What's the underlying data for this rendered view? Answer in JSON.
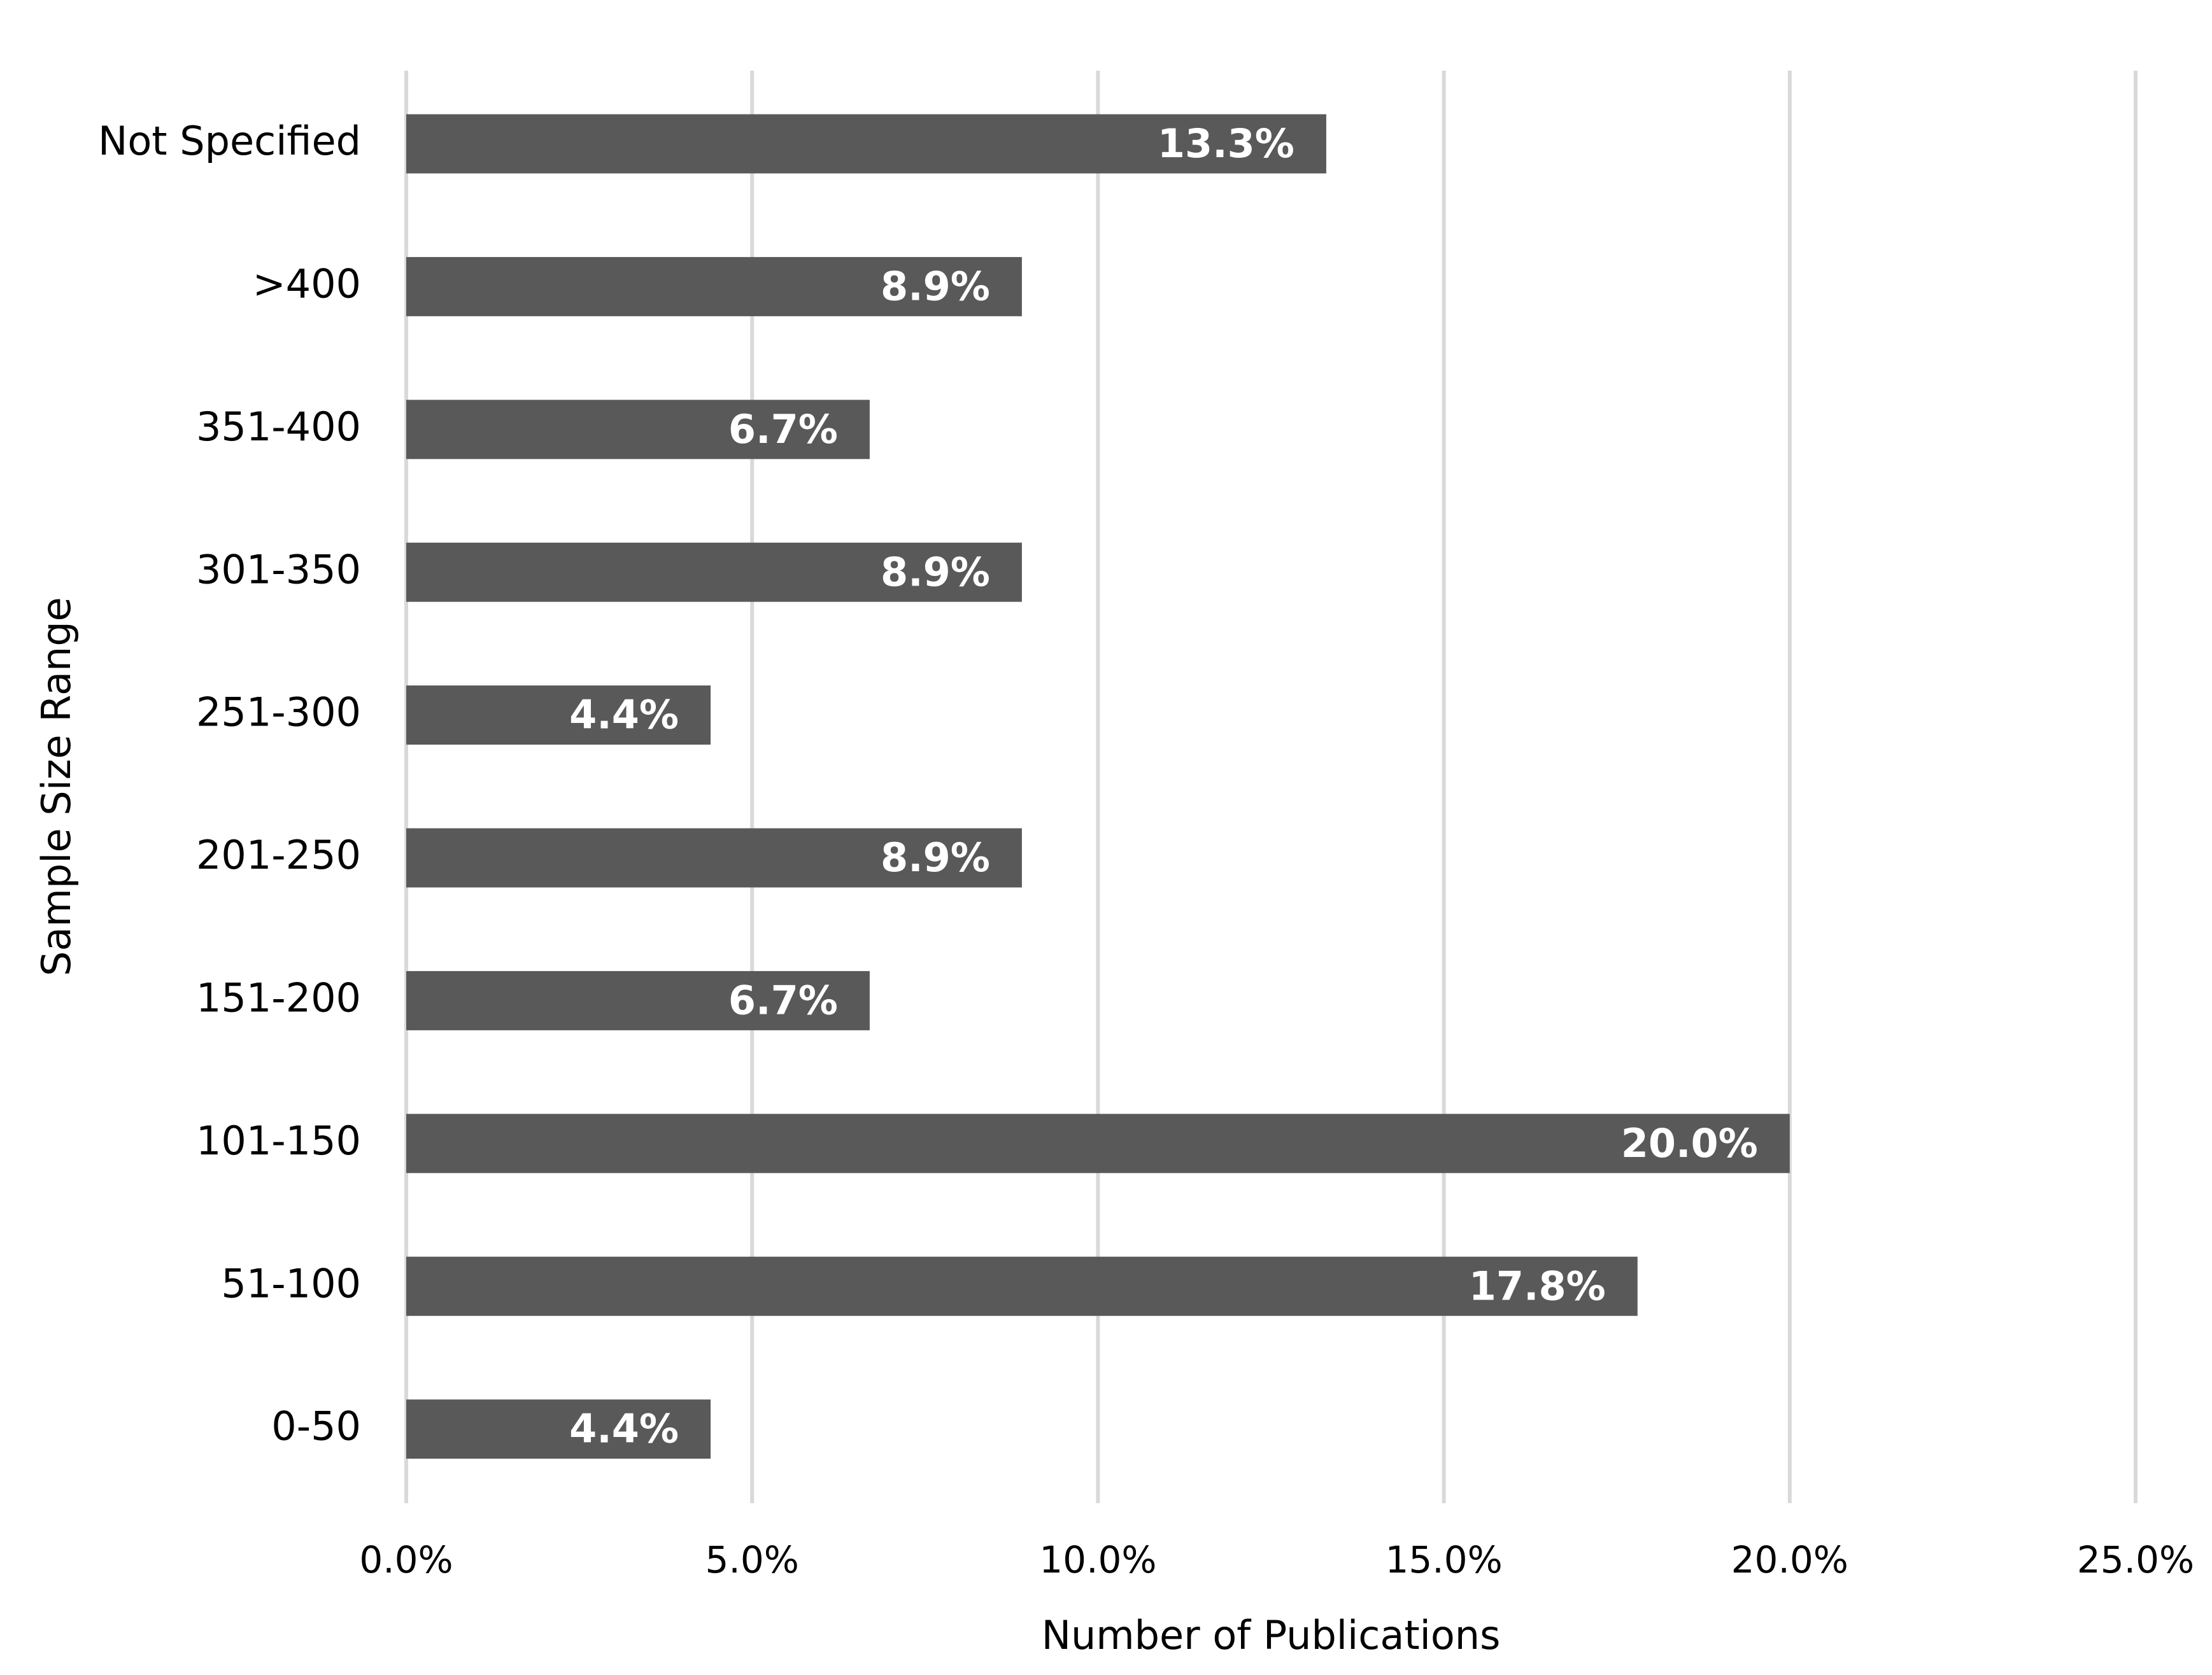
{
  "chart_data": {
    "type": "bar",
    "x_label": "Number of Publications",
    "y_label": "Sample Size Range",
    "categories": [
      "Not Specified",
      ">400",
      "351-400",
      "301-350",
      "251-300",
      "201-250",
      "151-200",
      "101-150",
      "51-100",
      "0-50"
    ],
    "values": [
      13.3,
      8.9,
      6.7,
      8.9,
      4.4,
      8.9,
      6.7,
      20.0,
      17.8,
      4.4
    ],
    "value_labels": [
      "13.3%",
      "8.9%",
      "6.7%",
      "8.9%",
      "4.4%",
      "8.9%",
      "6.7%",
      "20.0%",
      "17.8%",
      "4.4%"
    ],
    "color": "#595959",
    "xlim": [
      0,
      25
    ],
    "xticks": [
      {
        "value": 0,
        "label": "0.0%"
      },
      {
        "value": 5,
        "label": "5.0%"
      },
      {
        "value": 10,
        "label": "10.0%"
      },
      {
        "value": 15,
        "label": "15.0%"
      },
      {
        "value": 20,
        "label": "20.0%"
      },
      {
        "value": 25,
        "label": "25.0%"
      }
    ],
    "grid": true
  }
}
